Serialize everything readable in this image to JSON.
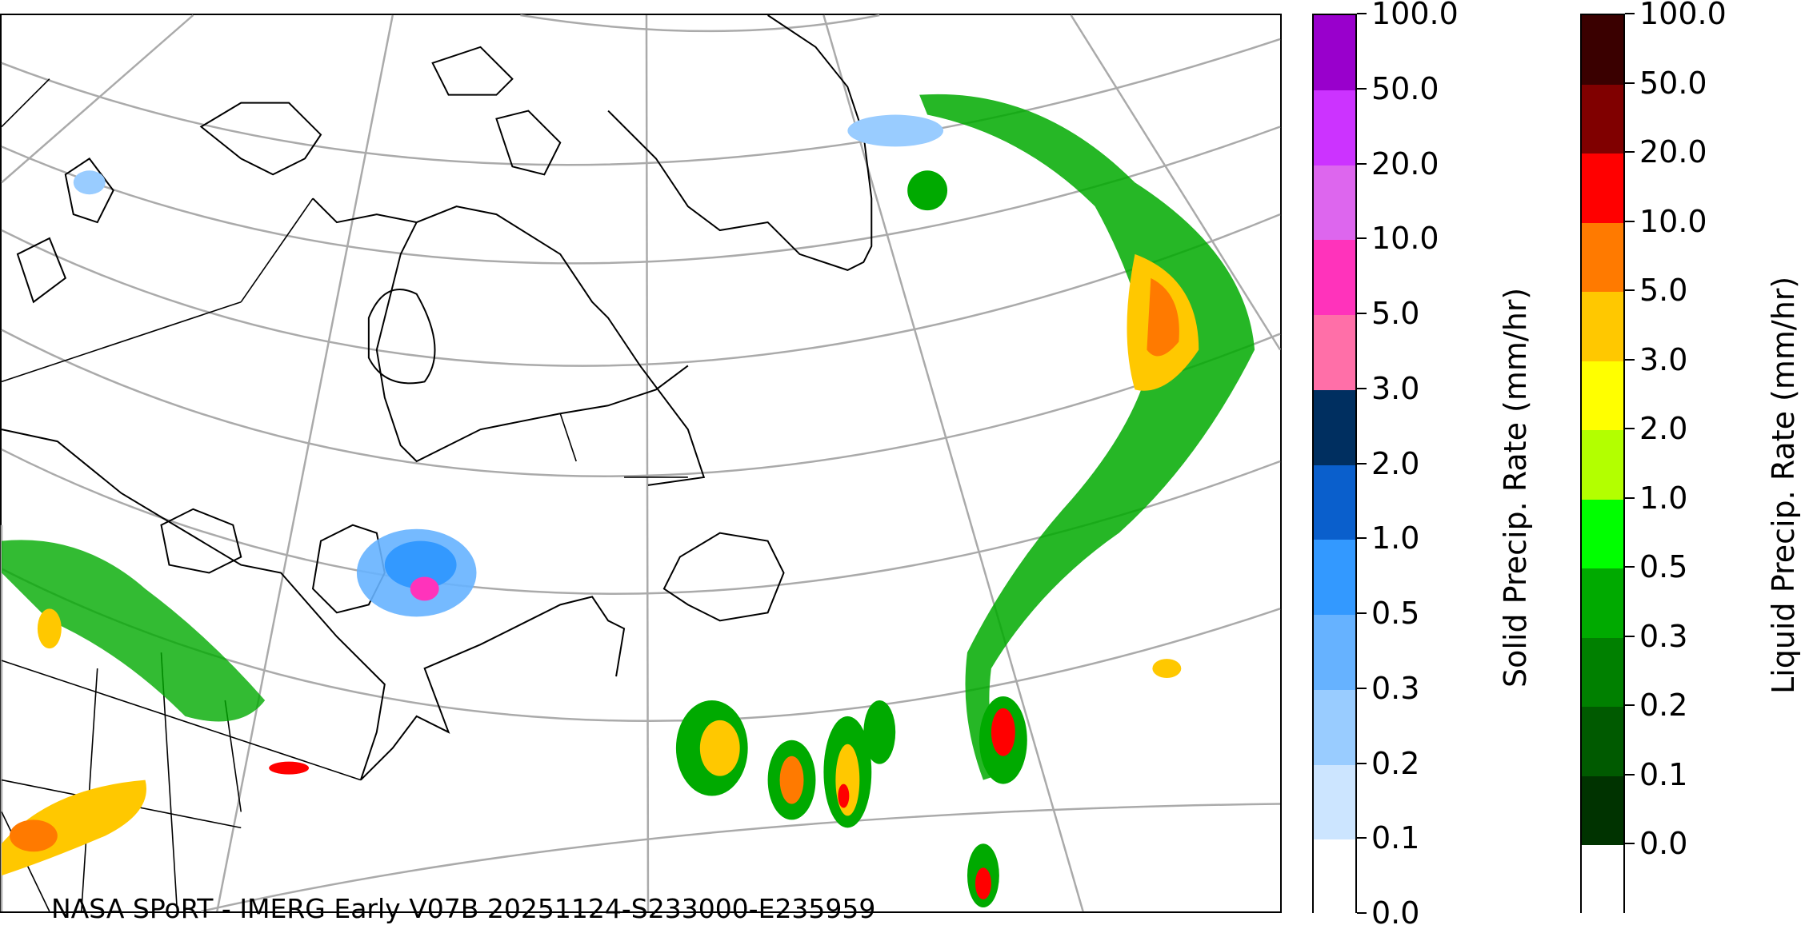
{
  "credit": "NASA SPoRT - IMERG Early V07B 20251124-S233000-E235959",
  "solid_colorbar": {
    "label": "Solid Precip. Rate (mm/hr)",
    "ticks": [
      "100.0",
      "50.0",
      "20.0",
      "10.0",
      "5.0",
      "3.0",
      "2.0",
      "1.0",
      "0.5",
      "0.3",
      "0.2",
      "0.1",
      "0.0"
    ],
    "colors_top_to_bottom": [
      "#9900cc",
      "#cc33ff",
      "#dd66ee",
      "#ff33bb",
      "#ff6fa8",
      "#002f60",
      "#0a5fcc",
      "#3399ff",
      "#66b2ff",
      "#99ccff",
      "#cce5ff",
      "#ffffff"
    ]
  },
  "liquid_colorbar": {
    "label": "Liquid Precip. Rate (mm/hr)",
    "ticks": [
      "100.0",
      "50.0",
      "20.0",
      "10.0",
      "5.0",
      "3.0",
      "2.0",
      "1.0",
      "0.5",
      "0.3",
      "0.2",
      "0.1",
      "0.0"
    ],
    "colors_top_to_bottom": [
      "#3a0000",
      "#800000",
      "#ff0000",
      "#ff7a00",
      "#ffc800",
      "#ffff00",
      "#b3ff00",
      "#00ff00",
      "#00aa00",
      "#008000",
      "#005a00",
      "#003300",
      "#ffffff"
    ]
  }
}
